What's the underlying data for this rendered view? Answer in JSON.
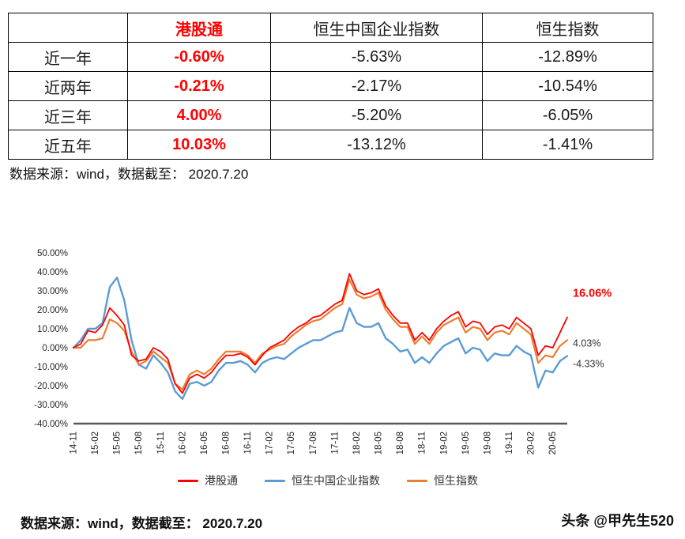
{
  "table": {
    "columns": [
      "",
      "港股通",
      "恒生中国企业指数",
      "恒生指数"
    ],
    "rows": [
      {
        "label": "近一年",
        "values": [
          "-0.60%",
          "-5.63%",
          "-12.89%"
        ]
      },
      {
        "label": "近两年",
        "values": [
          "-0.21%",
          "-2.17%",
          "-10.54%"
        ]
      },
      {
        "label": "近三年",
        "values": [
          "4.00%",
          "-5.20%",
          "-6.05%"
        ]
      },
      {
        "label": "近五年",
        "values": [
          "10.03%",
          "-13.12%",
          "-1.41%"
        ]
      }
    ],
    "highlight_column_color": "#ff0000"
  },
  "notes": {
    "top": "数据来源：wind，数据截至： 2020.7.20",
    "bottom": "数据来源：wind，数据截至： 2020.7.20"
  },
  "watermark": "头条 @甲先生520",
  "chart_data": {
    "type": "line",
    "title": "",
    "xlabel": "",
    "ylabel": "",
    "ylim": [
      -40,
      50
    ],
    "ystep": 10,
    "y_tick_format": "0.00%",
    "grid": false,
    "legend_position": "bottom",
    "x_tick_every": 3,
    "x": [
      "14-11",
      "14-12",
      "15-01",
      "15-02",
      "15-03",
      "15-04",
      "15-05",
      "15-06",
      "15-07",
      "15-08",
      "15-09",
      "15-10",
      "15-11",
      "15-12",
      "16-01",
      "16-02",
      "16-03",
      "16-04",
      "16-05",
      "16-06",
      "16-07",
      "16-08",
      "16-09",
      "16-10",
      "16-11",
      "16-12",
      "17-01",
      "17-02",
      "17-03",
      "17-04",
      "17-05",
      "17-06",
      "17-07",
      "17-08",
      "17-09",
      "17-10",
      "17-11",
      "17-12",
      "18-01",
      "18-02",
      "18-03",
      "18-04",
      "18-05",
      "18-06",
      "18-07",
      "18-08",
      "18-09",
      "18-10",
      "18-11",
      "18-12",
      "19-01",
      "19-02",
      "19-03",
      "19-04",
      "19-05",
      "19-06",
      "19-07",
      "19-08",
      "19-09",
      "19-10",
      "19-11",
      "19-12",
      "20-01",
      "20-02",
      "20-03",
      "20-04",
      "20-05",
      "20-06",
      "20-07"
    ],
    "series": [
      {
        "name": "港股通",
        "color": "#ff0000",
        "width": 1.8,
        "end_label": "16.06%",
        "end_label_color": "#ff0000",
        "end_label_bold": true,
        "values": [
          0,
          2,
          9,
          8,
          12,
          21,
          17,
          12,
          -4,
          -7,
          -6,
          0,
          -2,
          -6,
          -19,
          -24,
          -16,
          -14,
          -16,
          -13,
          -8,
          -4,
          -4,
          -3,
          -5,
          -9,
          -4,
          0,
          2,
          4,
          8,
          11,
          13,
          16,
          17,
          20,
          23,
          25,
          39,
          30,
          28,
          29,
          31,
          22,
          17,
          13,
          13,
          4,
          8,
          4,
          10,
          14,
          17,
          19,
          11,
          14,
          13,
          7,
          11,
          12,
          10,
          16,
          13,
          10,
          -4,
          1,
          0,
          8,
          16.06
        ]
      },
      {
        "name": "恒生中国企业指数",
        "color": "#5b9bd5",
        "width": 2.4,
        "end_label": "-4.33%",
        "end_label_color": "#333333",
        "end_label_bold": false,
        "values": [
          0,
          4,
          10,
          10,
          13,
          32,
          37,
          25,
          4,
          -9,
          -11,
          -4,
          -8,
          -13,
          -23,
          -27,
          -19,
          -18,
          -20,
          -18,
          -12,
          -8,
          -8,
          -7,
          -9,
          -13,
          -8,
          -6,
          -5,
          -6,
          -3,
          0,
          2,
          4,
          4,
          6,
          8,
          9,
          21,
          13,
          11,
          11,
          13,
          5,
          2,
          -2,
          -1,
          -8,
          -5,
          -8,
          -3,
          1,
          3,
          5,
          -3,
          0,
          -1,
          -7,
          -3,
          -4,
          -4,
          1,
          -2,
          -4,
          -21,
          -12,
          -13,
          -7,
          -4.33
        ]
      },
      {
        "name": "恒生指数",
        "color": "#ed7d31",
        "width": 2.2,
        "end_label": "4.03%",
        "end_label_color": "#333333",
        "end_label_bold": false,
        "values": [
          0,
          0,
          4,
          4,
          5,
          15,
          13,
          9,
          -2,
          -9,
          -7,
          -2,
          -5,
          -8,
          -19,
          -22,
          -14,
          -12,
          -14,
          -11,
          -6,
          -2,
          -2,
          -2,
          -4,
          -8,
          -3,
          -1,
          1,
          2,
          6,
          9,
          12,
          14,
          15,
          18,
          21,
          23,
          36,
          28,
          26,
          27,
          29,
          20,
          15,
          11,
          11,
          2,
          6,
          2,
          8,
          12,
          14,
          16,
          8,
          11,
          10,
          4,
          8,
          9,
          7,
          13,
          10,
          7,
          -8,
          -4,
          -5,
          1,
          4.03
        ]
      }
    ]
  }
}
